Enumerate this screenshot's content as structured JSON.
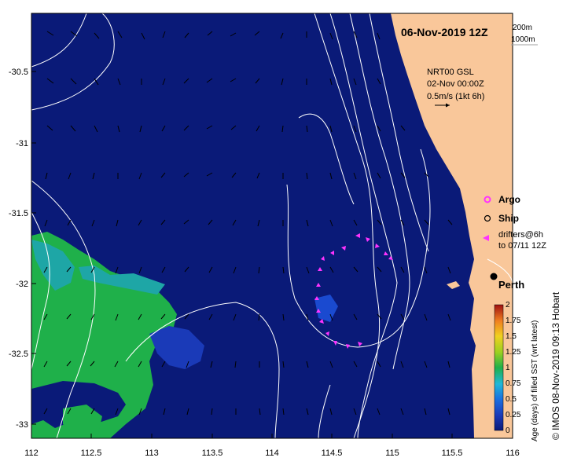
{
  "title": "06-Nov-2019 12Z",
  "depth_legend": [
    "200m",
    "1000m"
  ],
  "current_info": {
    "line1": "NRT00 GSL",
    "line2": "02-Nov 00:00Z",
    "line3": "0.5m/s (1kt 6h)"
  },
  "legend": {
    "argo": "Argo",
    "ship": "Ship",
    "drifters_line1": "drifters@6h",
    "drifters_line2": "to 07/11 12Z"
  },
  "place_label": "Perth",
  "colorbar": {
    "label": "Age (days) of filled SST (wrt latest)",
    "ticks": [
      "0",
      "0.25",
      "0.5",
      "0.75",
      "1",
      "1.25",
      "1.5",
      "1.75",
      "2"
    ]
  },
  "y_ticks": [
    "-30.5",
    "-31",
    "-31.5",
    "-32",
    "-32.5",
    "-33"
  ],
  "x_ticks": [
    "112",
    "112.5",
    "113",
    "113.5",
    "114",
    "114.5",
    "115",
    "115.5",
    "116"
  ],
  "credit": "© IMOS 08-Nov-2019 09:13 Hobart",
  "colors": {
    "ocean": "#0a1a78",
    "land": "#f9c79a",
    "green": "#1fb04a",
    "teal": "#1ea6a6",
    "argo": "#ff33ff"
  }
}
